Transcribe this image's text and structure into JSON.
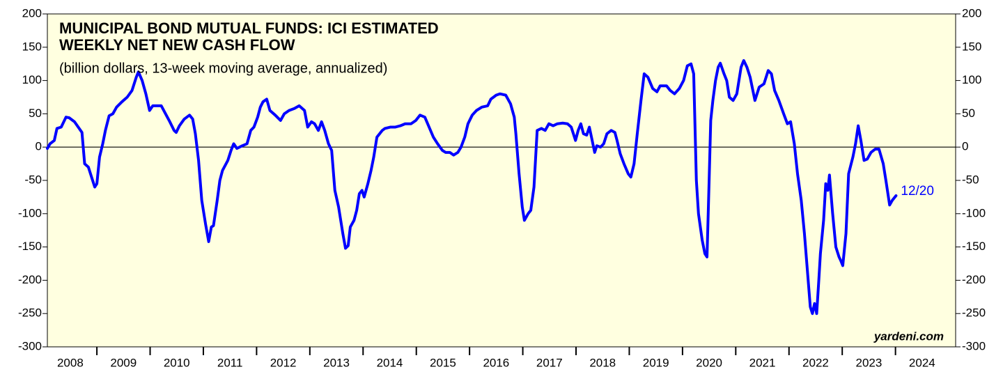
{
  "chart_data": {
    "type": "line",
    "title": [
      "MUNICIPAL BOND MUTUAL FUNDS: ICI ESTIMATED",
      "WEEKLY NET NEW CASH FLOW"
    ],
    "subtitle": "(billion dollars, 13-week moving average, annualized)",
    "source": "yardeni.com",
    "annotation": {
      "text": "12/20",
      "color": "#0000ff"
    },
    "color": "#0000ff",
    "background": "#ffffe0",
    "zero_line": true,
    "xlim": [
      2008.07,
      2025.13
    ],
    "ylim": [
      -300,
      200
    ],
    "yticks": [
      -300,
      -250,
      -200,
      -150,
      -100,
      -50,
      0,
      50,
      100,
      150,
      200
    ],
    "xticks": [
      {
        "value": 2008.5,
        "label": "2008"
      },
      {
        "value": 2009.5,
        "label": "2009"
      },
      {
        "value": 2010.5,
        "label": "2010"
      },
      {
        "value": 2011.5,
        "label": "2011"
      },
      {
        "value": 2012.5,
        "label": "2012"
      },
      {
        "value": 2013.5,
        "label": "2013"
      },
      {
        "value": 2014.5,
        "label": "2014"
      },
      {
        "value": 2015.5,
        "label": "2015"
      },
      {
        "value": 2016.5,
        "label": "2016"
      },
      {
        "value": 2017.5,
        "label": "2017"
      },
      {
        "value": 2018.5,
        "label": "2018"
      },
      {
        "value": 2019.5,
        "label": "2019"
      },
      {
        "value": 2020.5,
        "label": "2020"
      },
      {
        "value": 2021.5,
        "label": "2021"
      },
      {
        "value": 2022.5,
        "label": "2022"
      },
      {
        "value": 2023.5,
        "label": "2023"
      },
      {
        "value": 2024.5,
        "label": "2024"
      }
    ],
    "xtick_marks": [
      2009,
      2010,
      2011,
      2012,
      2013,
      2014,
      2015,
      2016,
      2017,
      2018,
      2019,
      2020,
      2021,
      2022,
      2023,
      2024
    ],
    "x": [
      2008.07,
      2008.12,
      2008.2,
      2008.25,
      2008.33,
      2008.42,
      2008.48,
      2008.58,
      2008.65,
      2008.72,
      2008.77,
      2008.84,
      2008.92,
      2008.96,
      2009.0,
      2009.05,
      2009.11,
      2009.16,
      2009.23,
      2009.3,
      2009.37,
      2009.47,
      2009.57,
      2009.66,
      2009.74,
      2009.78,
      2009.85,
      2009.92,
      2009.99,
      2010.05,
      2010.21,
      2010.29,
      2010.37,
      2010.45,
      2010.49,
      2010.55,
      2010.64,
      2010.74,
      2010.8,
      2010.85,
      2010.91,
      2010.97,
      2011.04,
      2011.1,
      2011.15,
      2011.19,
      2011.26,
      2011.31,
      2011.36,
      2011.46,
      2011.52,
      2011.57,
      2011.63,
      2011.73,
      2011.82,
      2011.89,
      2011.95,
      2012.02,
      2012.07,
      2012.12,
      2012.19,
      2012.25,
      2012.35,
      2012.45,
      2012.52,
      2012.61,
      2012.71,
      2012.8,
      2012.9,
      2012.96,
      2013.03,
      2013.09,
      2013.16,
      2013.22,
      2013.28,
      2013.35,
      2013.41,
      2013.47,
      2013.54,
      2013.62,
      2013.67,
      2013.72,
      2013.76,
      2013.83,
      2013.88,
      2013.93,
      2013.98,
      2014.02,
      2014.09,
      2014.15,
      2014.2,
      2014.26,
      2014.31,
      2014.36,
      2014.41,
      2014.51,
      2014.6,
      2014.7,
      2014.79,
      2014.9,
      2014.99,
      2015.07,
      2015.16,
      2015.24,
      2015.32,
      2015.4,
      2015.49,
      2015.55,
      2015.63,
      2015.7,
      2015.78,
      2015.84,
      2015.91,
      2015.97,
      2016.05,
      2016.13,
      2016.23,
      2016.34,
      2016.4,
      2016.5,
      2016.57,
      2016.68,
      2016.77,
      2016.84,
      2016.87,
      2016.93,
      2016.99,
      2017.03,
      2017.1,
      2017.15,
      2017.21,
      2017.27,
      2017.35,
      2017.42,
      2017.49,
      2017.57,
      2017.65,
      2017.75,
      2017.84,
      2017.91,
      2017.99,
      2018.04,
      2018.09,
      2018.14,
      2018.2,
      2018.25,
      2018.29,
      2018.35,
      2018.39,
      2018.46,
      2018.52,
      2018.58,
      2018.66,
      2018.73,
      2018.77,
      2018.83,
      2018.9,
      2018.98,
      2019.03,
      2019.09,
      2019.15,
      2019.22,
      2019.28,
      2019.35,
      2019.44,
      2019.52,
      2019.58,
      2019.7,
      2019.77,
      2019.85,
      2019.94,
      2020.02,
      2020.09,
      2020.16,
      2020.21,
      2020.26,
      2020.3,
      2020.37,
      2020.42,
      2020.46,
      2020.5,
      2020.53,
      2020.57,
      2020.62,
      2020.67,
      2020.71,
      2020.78,
      2020.83,
      2020.88,
      2020.95,
      2021.02,
      2021.1,
      2021.15,
      2021.21,
      2021.27,
      2021.36,
      2021.44,
      2021.53,
      2021.61,
      2021.67,
      2021.73,
      2021.81,
      2021.9,
      2021.97,
      2022.03,
      2022.1,
      2022.16,
      2022.23,
      2022.29,
      2022.36,
      2022.4,
      2022.44,
      2022.48,
      2022.52,
      2022.56,
      2022.59,
      2022.65,
      2022.69,
      2022.73,
      2022.76,
      2022.82,
      2022.88,
      2022.94,
      2022.97,
      2023.01,
      2023.07,
      2023.12,
      2023.2,
      2023.25,
      2023.3,
      2023.35,
      2023.41,
      2023.47,
      2023.54,
      2023.62,
      2023.69,
      2023.77,
      2023.82,
      2023.89,
      2023.94,
      2024.01
    ],
    "values": [
      -2,
      5,
      10,
      28,
      30,
      45,
      44,
      38,
      30,
      22,
      -25,
      -30,
      -50,
      -60,
      -55,
      -15,
      5,
      25,
      47,
      50,
      60,
      68,
      75,
      85,
      105,
      113,
      100,
      80,
      55,
      62,
      62,
      50,
      38,
      25,
      22,
      32,
      42,
      48,
      42,
      20,
      -20,
      -80,
      -115,
      -142,
      -120,
      -118,
      -80,
      -50,
      -35,
      -20,
      -5,
      5,
      -2,
      2,
      5,
      25,
      30,
      45,
      60,
      68,
      72,
      55,
      48,
      40,
      50,
      55,
      58,
      62,
      55,
      30,
      38,
      35,
      25,
      38,
      25,
      5,
      -5,
      -65,
      -90,
      -130,
      -152,
      -148,
      -120,
      -110,
      -95,
      -70,
      -65,
      -75,
      -55,
      -35,
      -15,
      15,
      20,
      25,
      28,
      30,
      30,
      32,
      35,
      35,
      40,
      48,
      45,
      30,
      15,
      5,
      -5,
      -8,
      -8,
      -12,
      -8,
      0,
      15,
      35,
      48,
      55,
      60,
      62,
      72,
      78,
      80,
      78,
      65,
      45,
      20,
      -40,
      -90,
      -110,
      -100,
      -95,
      -60,
      25,
      28,
      25,
      35,
      32,
      35,
      36,
      35,
      30,
      10,
      25,
      35,
      20,
      18,
      30,
      15,
      -8,
      2,
      0,
      5,
      20,
      25,
      22,
      10,
      -10,
      -25,
      -40,
      -45,
      -25,
      20,
      70,
      110,
      105,
      88,
      83,
      92,
      92,
      85,
      80,
      88,
      100,
      122,
      125,
      110,
      -50,
      -100,
      -140,
      -160,
      -165,
      -50,
      40,
      70,
      100,
      120,
      126,
      110,
      100,
      75,
      70,
      80,
      120,
      130,
      120,
      105,
      70,
      90,
      95,
      115,
      110,
      85,
      70,
      50,
      35,
      38,
      5,
      -40,
      -80,
      -130,
      -200,
      -240,
      -250,
      -235,
      -250,
      -200,
      -160,
      -110,
      -55,
      -65,
      -42,
      -100,
      -150,
      -165,
      -170,
      -178,
      -130,
      -40,
      -15,
      5,
      32,
      10,
      -20,
      -18,
      -8,
      -3,
      -3,
      -25,
      -50,
      -87,
      -80,
      -73
    ]
  }
}
